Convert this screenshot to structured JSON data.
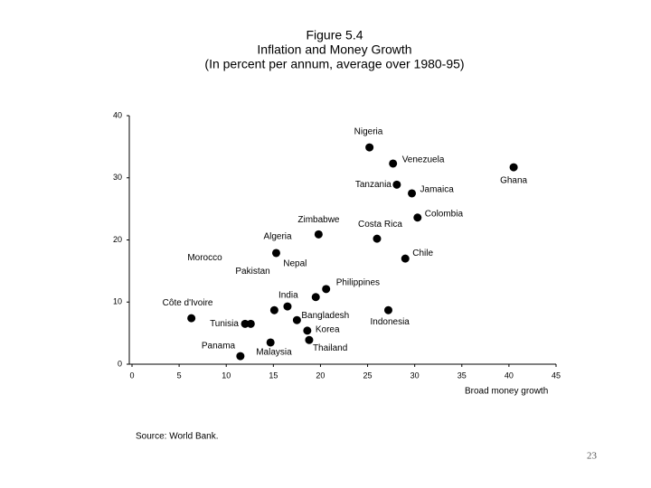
{
  "chart_data": {
    "type": "scatter",
    "title": "Figure 5.4",
    "subtitle": "Inflation and Money Growth",
    "subtitle2": "(In percent per annum, average over 1980-95)",
    "x_label": "Broad money growth",
    "source": "Source: World Bank.",
    "page_number": "23",
    "labels": [
      "Nigeria",
      "Venezuela",
      "Ghana",
      "Tanzania",
      "Jamaica",
      "Colombia",
      "Zimbabwe",
      "Costa Rica",
      "Algeria",
      "Chile",
      "Philippines",
      "Nepal",
      "India",
      "Pakistan",
      "Indonesia",
      "Bangladesh",
      "Côte d'Ivoire",
      "Tunisia",
      "Morocco",
      "Korea",
      "Thailand",
      "Malaysia",
      "Panama"
    ],
    "x": [
      25.2,
      27.7,
      40.5,
      28.1,
      29.7,
      30.3,
      19.8,
      26.0,
      15.3,
      29.0,
      20.6,
      19.5,
      16.5,
      15.1,
      27.2,
      17.5,
      6.3,
      12.0,
      12.6,
      18.6,
      18.8,
      14.7,
      11.5
    ],
    "values": [
      34.9,
      32.3,
      31.7,
      28.9,
      27.5,
      23.6,
      20.9,
      20.2,
      17.9,
      17.0,
      12.1,
      10.8,
      9.3,
      8.7,
      8.7,
      7.1,
      7.4,
      6.5,
      6.5,
      5.4,
      3.9,
      3.5,
      1.3
    ],
    "color": "#000000",
    "xlim": [
      0,
      45
    ],
    "xticks": [
      0,
      5,
      10,
      15,
      20,
      25,
      30,
      35,
      40,
      45
    ],
    "ylim": [
      0,
      40
    ],
    "yticks": [
      0,
      10,
      20,
      30,
      40
    ]
  }
}
